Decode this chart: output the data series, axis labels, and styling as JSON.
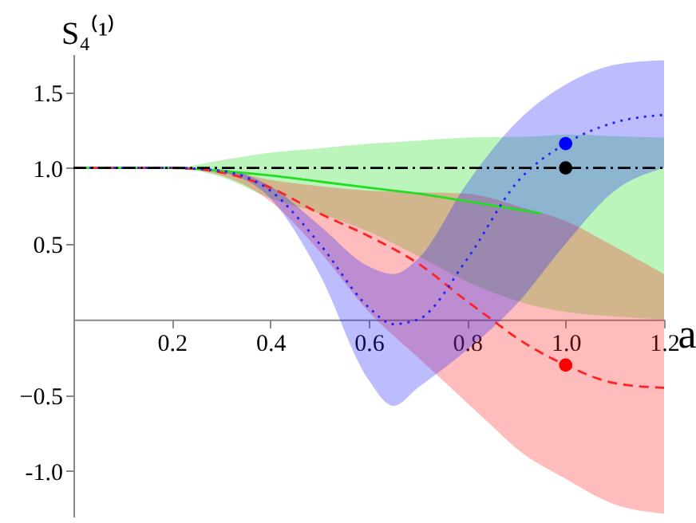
{
  "chart_data": {
    "type": "line",
    "xlabel": "a",
    "ylabel": "S₄⁽¹⁾",
    "xlim": [
      0,
      1.2
    ],
    "ylim": [
      -1.3,
      1.75
    ],
    "xticks": [
      0.2,
      0.4,
      0.6,
      0.8,
      {
        "value": 1.0,
        "label": "1.0"
      },
      1.2
    ],
    "yticks": [
      {
        "value": -1.0,
        "label": "-1.0"
      },
      -0.5,
      0.5,
      {
        "value": 1.0,
        "label": "1.0"
      },
      1.5
    ],
    "grid": false,
    "marker": "none",
    "series": [
      {
        "type": "line",
        "color": "#22dd22",
        "line_style": "solid",
        "x": [
          0,
          0.2,
          0.3,
          0.4,
          0.5,
          0.6,
          0.7,
          0.8,
          0.95,
          1.0,
          1.1,
          1.2
        ],
        "values": [
          1.0,
          1.0,
          0.98,
          0.95,
          0.91,
          0.87,
          0.83,
          0.78,
          0.7,
          null,
          null,
          null
        ],
        "lower": [
          1.0,
          1.0,
          0.94,
          0.8,
          0.7,
          0.58,
          0.42,
          0.25,
          0.08,
          0.05,
          0.02,
          0.0
        ],
        "upper": [
          1.0,
          1.0,
          1.05,
          1.1,
          1.13,
          1.16,
          1.18,
          1.2,
          1.21,
          1.22,
          1.21,
          1.2
        ]
      },
      {
        "type": "line",
        "color": "#ff2222",
        "line_style": "dashed",
        "x": [
          0,
          0.2,
          0.3,
          0.4,
          0.5,
          0.6,
          0.7,
          0.8,
          0.85,
          0.9,
          1.0,
          1.1,
          1.2
        ],
        "values": [
          1.0,
          1.0,
          0.97,
          0.87,
          0.7,
          0.55,
          0.37,
          0.12,
          0.0,
          -0.12,
          -0.3,
          -0.42,
          -0.45
        ],
        "lower": [
          1.0,
          1.0,
          0.95,
          0.78,
          0.45,
          0.05,
          -0.25,
          -0.55,
          -0.7,
          -0.85,
          -1.05,
          -1.22,
          -1.28
        ],
        "upper": [
          1.0,
          1.0,
          0.99,
          0.92,
          0.88,
          0.85,
          0.84,
          0.83,
          0.8,
          0.75,
          0.65,
          0.48,
          0.3
        ]
      },
      {
        "type": "line",
        "color": "#2222ff",
        "line_style": "dotted",
        "x": [
          0,
          0.2,
          0.3,
          0.4,
          0.5,
          0.6,
          0.65,
          0.7,
          0.8,
          0.9,
          1.0,
          1.1,
          1.2
        ],
        "values": [
          1.0,
          1.0,
          0.98,
          0.85,
          0.5,
          0.08,
          -0.03,
          0.0,
          0.4,
          0.9,
          1.16,
          1.3,
          1.35
        ],
        "lower": [
          1.0,
          1.0,
          0.97,
          0.8,
          0.3,
          -0.4,
          -0.57,
          -0.45,
          -0.2,
          0.1,
          0.5,
          0.85,
          1.0
        ],
        "upper": [
          1.0,
          1.0,
          0.99,
          0.88,
          0.62,
          0.35,
          0.3,
          0.4,
          0.9,
          1.3,
          1.55,
          1.68,
          1.71
        ]
      },
      {
        "type": "line",
        "color": "#000000",
        "line_style": "dashdot",
        "x": [
          0,
          0.2,
          0.3,
          0.4,
          0.5,
          0.6,
          0.7,
          0.8,
          0.9,
          1.0,
          1.1,
          1.2
        ],
        "values": [
          1.0,
          1.0,
          1.0,
          1.0,
          1.0,
          1.0,
          1.0,
          1.0,
          1.0,
          1.0,
          1.0,
          1.0
        ]
      },
      {
        "type": "scatter",
        "color": "#0000ff",
        "marker": "circle",
        "x": [
          1.0
        ],
        "values": [
          1.16
        ]
      },
      {
        "type": "scatter",
        "color": "#000000",
        "marker": "circle",
        "x": [
          1.0
        ],
        "values": [
          1.0
        ]
      },
      {
        "type": "scatter",
        "color": "#ff0000",
        "marker": "circle",
        "x": [
          1.0
        ],
        "values": [
          -0.3
        ]
      }
    ]
  }
}
